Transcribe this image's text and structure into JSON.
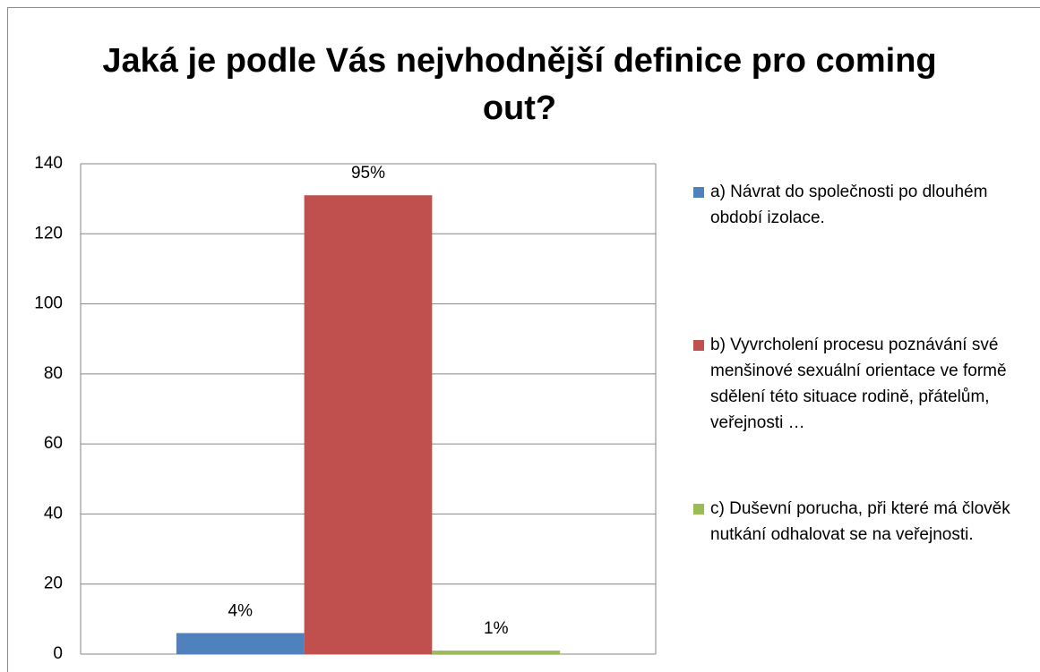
{
  "chart_data": {
    "type": "bar",
    "title": "Jaká je podle Vás nejvhodnější definice pro coming out?",
    "categories": [
      null
    ],
    "series": [
      {
        "name": "a) Návrat do společnosti po dlouhém období izolace.",
        "color": "#4f81bd",
        "values": [
          6
        ]
      },
      {
        "name": "b) Vyvrcholení procesu poznávání své menšinové sexuální orientace ve formě sdělení této situace rodině, přátelům, veřejnosti …",
        "color": "#c0504d",
        "values": [
          131
        ]
      },
      {
        "name": "c) Duševní porucha, při které má člověk nutkání odhalovat se na veřejnosti.",
        "color": "#9bbb59",
        "values": [
          1
        ]
      }
    ],
    "share_labels": [
      "4%",
      "95%",
      "1%"
    ],
    "ylim": [
      0,
      140
    ],
    "yticks": [
      0,
      20,
      40,
      60,
      80,
      100,
      120,
      140
    ],
    "grid": true,
    "legend": "right"
  }
}
